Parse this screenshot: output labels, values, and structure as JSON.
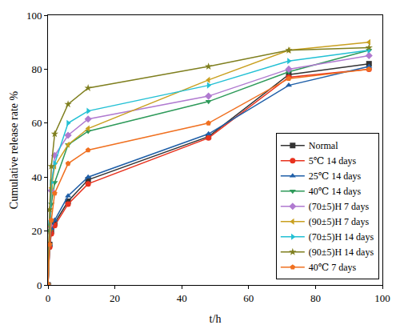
{
  "chart_data": {
    "type": "line",
    "x_label": "t/h",
    "y_label": "Cumulative release rate %",
    "x": [
      0,
      0.5,
      1,
      2,
      6,
      12,
      48,
      72,
      96
    ],
    "series": [
      {
        "name": "Normal",
        "color": "#333333",
        "marker": "square",
        "values": [
          0,
          15,
          20,
          23,
          31,
          39,
          55,
          78,
          82
        ]
      },
      {
        "name": "5℃ 14 days",
        "color": "#e8321e",
        "marker": "circle",
        "values": [
          0,
          14,
          19,
          22,
          30,
          37.5,
          54.5,
          77,
          80
        ]
      },
      {
        "name": "25℃ 14 days",
        "color": "#1f5fa8",
        "marker": "triangle-up",
        "values": [
          0,
          15,
          21,
          24,
          33,
          40,
          56,
          74,
          81
        ]
      },
      {
        "name": "40℃ 14 days",
        "color": "#2e9a5a",
        "marker": "triangle-down",
        "values": [
          0,
          20,
          30,
          38,
          52,
          57,
          68,
          79,
          87
        ]
      },
      {
        "name": "(70±5)H 7 days",
        "color": "#b07ad0",
        "marker": "diamond",
        "values": [
          0,
          22,
          35,
          48,
          55.5,
          61.5,
          70,
          80,
          85
        ]
      },
      {
        "name": "(90±5)H 7 days",
        "color": "#c9a020",
        "marker": "triangle-left",
        "values": [
          0,
          22,
          36,
          44,
          52,
          58,
          76,
          87,
          90
        ]
      },
      {
        "name": "(70±5)H 14 days",
        "color": "#22c0d4",
        "marker": "triangle-right",
        "values": [
          0,
          23,
          38,
          45,
          60,
          64.5,
          74,
          83,
          87
        ]
      },
      {
        "name": "(90±5)H 14 days",
        "color": "#7f7f1f",
        "marker": "star",
        "values": [
          0,
          28,
          44,
          56,
          67,
          73,
          81,
          87,
          88
        ]
      },
      {
        "name": "40℃ 7 days",
        "color": "#f07020",
        "marker": "pentagon",
        "values": [
          0,
          15,
          24,
          34,
          45,
          50,
          60,
          76.5,
          80
        ]
      }
    ],
    "xlim": [
      0,
      100
    ],
    "xticks": [
      0,
      20,
      40,
      60,
      80,
      100
    ],
    "ylim": [
      0,
      100
    ],
    "yticks": [
      0,
      20,
      40,
      60,
      80,
      100
    ],
    "grid": false,
    "legend": "lower right"
  }
}
